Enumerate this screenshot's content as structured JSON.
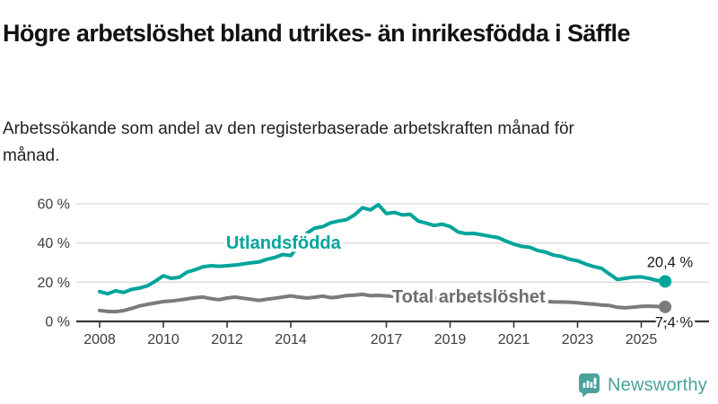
{
  "header": {
    "title": "Högre arbetslöshet bland utrikes- än inrikesfödda i Säffle",
    "subtitle": "Arbetssökande som andel av den registerbaserade arbetskraften månad för månad."
  },
  "chart_data": {
    "type": "line",
    "title": "Högre arbetslöshet bland utrikes- än inrikesfödda i Säffle",
    "subtitle": "Arbetssökande som andel av den registerbaserade arbetskraften månad för månad.",
    "unit": "%",
    "x": [
      2008.0,
      2008.25,
      2008.5,
      2008.75,
      2009.0,
      2009.25,
      2009.5,
      2009.75,
      2010.0,
      2010.25,
      2010.5,
      2010.75,
      2011.0,
      2011.25,
      2011.5,
      2011.75,
      2012.0,
      2012.25,
      2012.5,
      2012.75,
      2013.0,
      2013.25,
      2013.5,
      2013.75,
      2014.0,
      2014.25,
      2014.5,
      2014.75,
      2015.0,
      2015.25,
      2015.5,
      2015.75,
      2016.0,
      2016.25,
      2016.5,
      2016.75,
      2017.0,
      2017.25,
      2017.5,
      2017.75,
      2018.0,
      2018.25,
      2018.5,
      2018.75,
      2019.0,
      2019.25,
      2019.5,
      2019.75,
      2020.0,
      2020.25,
      2020.5,
      2020.75,
      2021.0,
      2021.25,
      2021.5,
      2021.75,
      2022.0,
      2022.25,
      2022.5,
      2022.75,
      2023.0,
      2023.25,
      2023.5,
      2023.75,
      2024.0,
      2024.25,
      2024.5,
      2024.75,
      2025.0,
      2025.25,
      2025.5,
      2025.75
    ],
    "series": [
      {
        "name": "Utlandsfödda",
        "color": "#00a49b",
        "label_color": "#00a49b",
        "end_label": "20,4 %",
        "label_anchor": {
          "x": 2011.97,
          "y": 37.2
        },
        "values": [
          15.2,
          14.1,
          15.6,
          14.8,
          16.3,
          17.0,
          18.2,
          20.5,
          23.3,
          22.0,
          22.5,
          25.2,
          26.4,
          27.9,
          28.4,
          28.1,
          28.4,
          28.7,
          29.3,
          29.9,
          30.3,
          31.7,
          32.6,
          34.1,
          33.6,
          38.5,
          45.0,
          47.6,
          48.3,
          50.3,
          51.2,
          51.9,
          54.3,
          58.0,
          56.9,
          59.6,
          55.0,
          55.6,
          54.3,
          54.6,
          51.2,
          50.1,
          48.9,
          49.6,
          48.4,
          45.6,
          44.8,
          44.9,
          44.2,
          43.4,
          42.8,
          41.0,
          39.4,
          38.3,
          37.8,
          36.2,
          35.3,
          33.8,
          33.1,
          31.7,
          30.9,
          29.3,
          28.0,
          27.1,
          24.2,
          21.4,
          22.0,
          22.6,
          22.7,
          21.9,
          20.9,
          20.4
        ]
      },
      {
        "name": "Total arbetslöshet",
        "color": "#7b7b7b",
        "label_color": "#6e6e6e",
        "end_label": "7,4 %",
        "label_anchor": {
          "x": 2017.18,
          "y": 9.6
        },
        "values": [
          5.6,
          5.1,
          5.0,
          5.5,
          6.6,
          7.9,
          8.7,
          9.4,
          10.1,
          10.4,
          10.9,
          11.5,
          12.1,
          12.4,
          11.6,
          11.1,
          11.9,
          12.4,
          11.8,
          11.3,
          10.7,
          11.3,
          11.8,
          12.4,
          13.0,
          12.4,
          11.9,
          12.3,
          12.9,
          12.1,
          12.5,
          13.2,
          13.4,
          13.8,
          13.1,
          13.3,
          13.0,
          12.8,
          12.6,
          12.4,
          12.1,
          11.9,
          11.7,
          11.8,
          11.6,
          11.4,
          11.3,
          11.5,
          11.8,
          12.6,
          12.4,
          12.0,
          11.6,
          11.2,
          10.8,
          10.4,
          10.2,
          10.0,
          9.9,
          9.8,
          9.5,
          9.1,
          8.8,
          8.4,
          8.1,
          7.2,
          6.9,
          7.3,
          7.7,
          7.8,
          7.6,
          7.4
        ]
      }
    ],
    "xticks": [
      2008,
      2010,
      2012,
      2014,
      2017,
      2019,
      2021,
      2023,
      2025
    ],
    "xtick_labels": [
      "2008",
      "2010",
      "2012",
      "2014",
      "2017",
      "2019",
      "2021",
      "2023",
      "2025"
    ],
    "yticks": [
      0,
      20,
      40,
      60
    ],
    "ytick_labels": [
      "0 %",
      "20 %",
      "40 %",
      "60 %"
    ],
    "xlim": [
      2008,
      2025.9
    ],
    "ylim": [
      0,
      63
    ],
    "grid": "horizontal",
    "legend_position": "inline-labels"
  },
  "footer": {
    "brand": "Newsworthy"
  }
}
